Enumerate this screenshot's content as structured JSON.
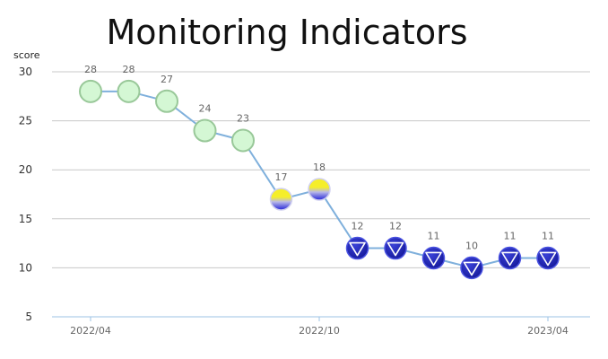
{
  "chart_data": {
    "type": "line",
    "title": "Monitoring Indicators",
    "xlabel": "",
    "ylabel": "score",
    "ylim": [
      5,
      30
    ],
    "yticks": [
      5,
      10,
      15,
      20,
      25,
      30
    ],
    "grid": true,
    "x_tick_labels": [
      {
        "index": 0,
        "label": "2022/04"
      },
      {
        "index": 6,
        "label": "2022/10"
      },
      {
        "index": 12,
        "label": "2023/04"
      }
    ],
    "series": [
      {
        "name": "score",
        "values": [
          28,
          28,
          27,
          24,
          23,
          17,
          18,
          12,
          12,
          11,
          10,
          11,
          11
        ],
        "statuses": [
          "good",
          "good",
          "good",
          "good",
          "good",
          "caution",
          "caution",
          "bad",
          "bad",
          "bad",
          "bad",
          "bad",
          "bad"
        ]
      }
    ],
    "colors": {
      "line": "#7fb0dc",
      "grid": "#c8c8c8",
      "axis": "#9ec3e6",
      "good_fill": "#d4f7d4",
      "good_stroke": "#99c899",
      "caution_top": "#f5ee2a",
      "caution_bottom": "#2424d8",
      "bad_fill": "#1f25b8",
      "bad_stroke": "#4a52e0",
      "bad_symbol": "#ffffff"
    }
  }
}
